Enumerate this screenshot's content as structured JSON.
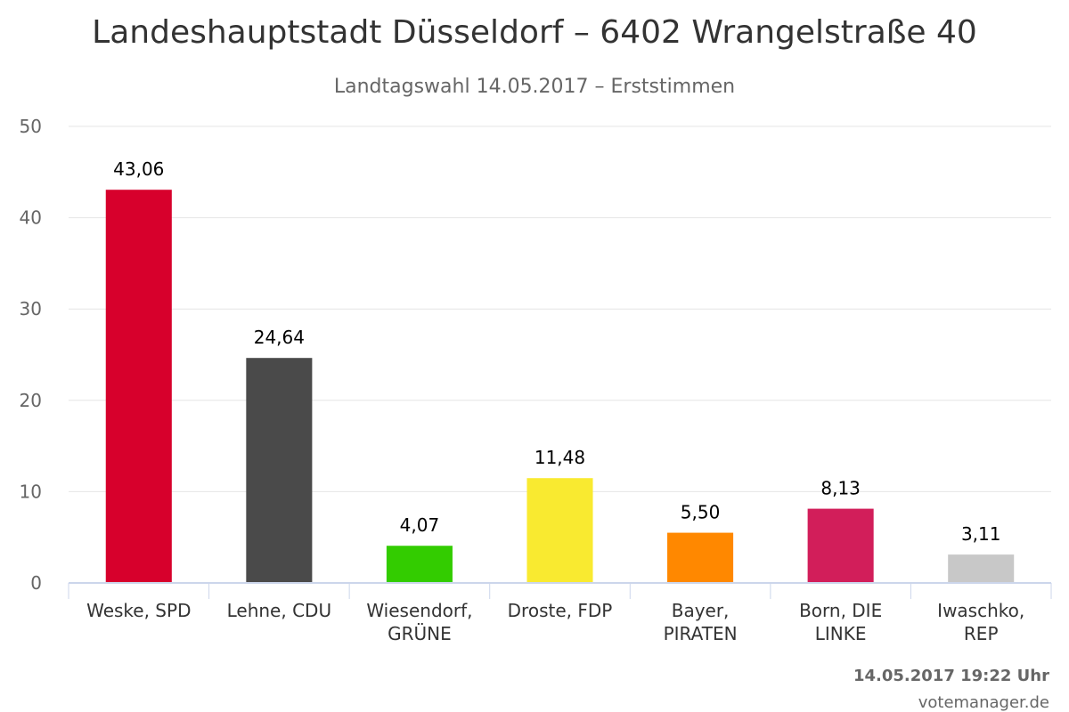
{
  "chart_data": {
    "type": "bar",
    "title": "Landeshauptstadt Düsseldorf – 6402 Wrangelstraße 40",
    "subtitle": "Landtagswahl 14.05.2017 – Erststimmen",
    "categories": [
      [
        "Weske, SPD"
      ],
      [
        "Lehne, CDU"
      ],
      [
        "Wiesendorf,",
        "GRÜNE"
      ],
      [
        "Droste, FDP"
      ],
      [
        "Bayer,",
        "PIRATEN"
      ],
      [
        "Born, DIE",
        "LINKE"
      ],
      [
        "Iwaschko,",
        "REP"
      ]
    ],
    "values": [
      43.06,
      24.64,
      4.07,
      11.48,
      5.5,
      8.13,
      3.11
    ],
    "value_labels": [
      "43,06",
      "24,64",
      "4,07",
      "11,48",
      "5,50",
      "8,13",
      "3,11"
    ],
    "colors": [
      "#d7002c",
      "#4a4a4a",
      "#33cc00",
      "#f9ea30",
      "#ff8800",
      "#d21e5a",
      "#c8c8c8"
    ],
    "ylim": [
      0,
      50
    ],
    "yticks": [
      0,
      10,
      20,
      30,
      40,
      50
    ],
    "grid": true,
    "legend": "none"
  },
  "footer": {
    "timestamp": "14.05.2017 19:22 Uhr",
    "credit": "votemanager.de"
  }
}
